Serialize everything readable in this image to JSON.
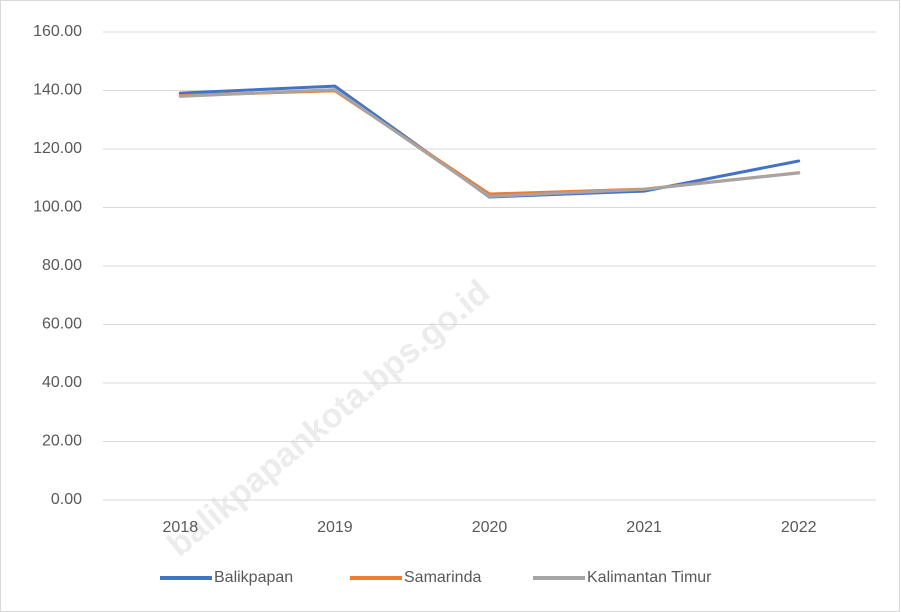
{
  "chart_data": {
    "type": "line",
    "categories": [
      "2018",
      "2019",
      "2020",
      "2021",
      "2022"
    ],
    "series": [
      {
        "name": "Balikpapan",
        "color": "#4472c4",
        "values": [
          139.1,
          141.5,
          103.6,
          105.6,
          115.9
        ]
      },
      {
        "name": "Samarinda",
        "color": "#ed7d31",
        "values": [
          138.3,
          139.9,
          104.6,
          106.3,
          111.9
        ]
      },
      {
        "name": "Kalimantan Timur",
        "color": "#a5a5a5",
        "values": [
          138.0,
          140.3,
          103.8,
          106.2,
          111.8
        ]
      }
    ],
    "ylim": [
      0,
      160
    ],
    "yticks": [
      {
        "value": 0,
        "label": "0.00"
      },
      {
        "value": 20,
        "label": "20.00"
      },
      {
        "value": 40,
        "label": "40.00"
      },
      {
        "value": 60,
        "label": "60.00"
      },
      {
        "value": 80,
        "label": "80.00"
      },
      {
        "value": 100,
        "label": "100.00"
      },
      {
        "value": 120,
        "label": "120.00"
      },
      {
        "value": 140,
        "label": "140.00"
      },
      {
        "value": 160,
        "label": "160.00"
      }
    ],
    "grid": true,
    "legend": "bottom",
    "watermark": "balikpapankota.bps.go.id"
  }
}
